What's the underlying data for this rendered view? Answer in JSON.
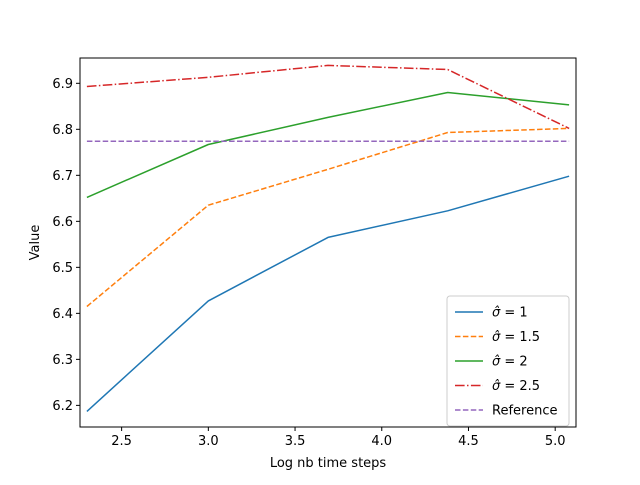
{
  "chart_data": {
    "type": "line",
    "title": "",
    "xlabel": "Log nb time  steps",
    "ylabel": "Value",
    "xlim": [
      2.26,
      5.12
    ],
    "ylim": [
      6.153,
      6.955
    ],
    "xticks": [
      2.5,
      3.0,
      3.5,
      4.0,
      4.5,
      5.0
    ],
    "xtick_labels": [
      "2.5",
      "3.0",
      "3.5",
      "4.0",
      "4.5",
      "5.0"
    ],
    "yticks": [
      6.2,
      6.3,
      6.4,
      6.5,
      6.6,
      6.7,
      6.8,
      6.9
    ],
    "ytick_labels": [
      "6.2",
      "6.3",
      "6.4",
      "6.5",
      "6.6",
      "6.7",
      "6.8",
      "6.9"
    ],
    "grid": false,
    "legend_position": "lower-right",
    "series": [
      {
        "name": "σ̂ =  1",
        "legend_prefix": "σ̂",
        "legend_suffix": " =  1",
        "color": "#1f77b4",
        "style": "solid",
        "x": [
          2.3,
          3.0,
          3.69,
          4.38,
          5.08
        ],
        "y": [
          6.187,
          6.427,
          6.565,
          6.623,
          6.698
        ]
      },
      {
        "name": "σ̂ =  1.5",
        "legend_prefix": "σ̂",
        "legend_suffix": " =  1.5",
        "color": "#ff7f0e",
        "style": "dashed",
        "x": [
          2.3,
          3.0,
          3.69,
          4.38,
          5.08
        ],
        "y": [
          6.415,
          6.635,
          6.713,
          6.793,
          6.802
        ]
      },
      {
        "name": "σ̂ =  2",
        "legend_prefix": "σ̂",
        "legend_suffix": " =  2",
        "color": "#2ca02c",
        "style": "solid",
        "x": [
          2.3,
          3.0,
          3.69,
          4.38,
          5.08
        ],
        "y": [
          6.652,
          6.767,
          6.826,
          6.88,
          6.853
        ]
      },
      {
        "name": "σ̂ =  2.5",
        "legend_prefix": "σ̂",
        "legend_suffix": " =  2.5",
        "color": "#d62728",
        "style": "dashdot",
        "x": [
          2.3,
          3.0,
          3.69,
          4.38,
          5.08
        ],
        "y": [
          6.893,
          6.913,
          6.939,
          6.93,
          6.802
        ]
      },
      {
        "name": "Reference",
        "legend_prefix": "",
        "legend_suffix": "Reference",
        "color": "#9467bd",
        "style": "dashed",
        "x": [
          2.3,
          5.08
        ],
        "y": [
          6.774,
          6.774
        ]
      }
    ]
  }
}
